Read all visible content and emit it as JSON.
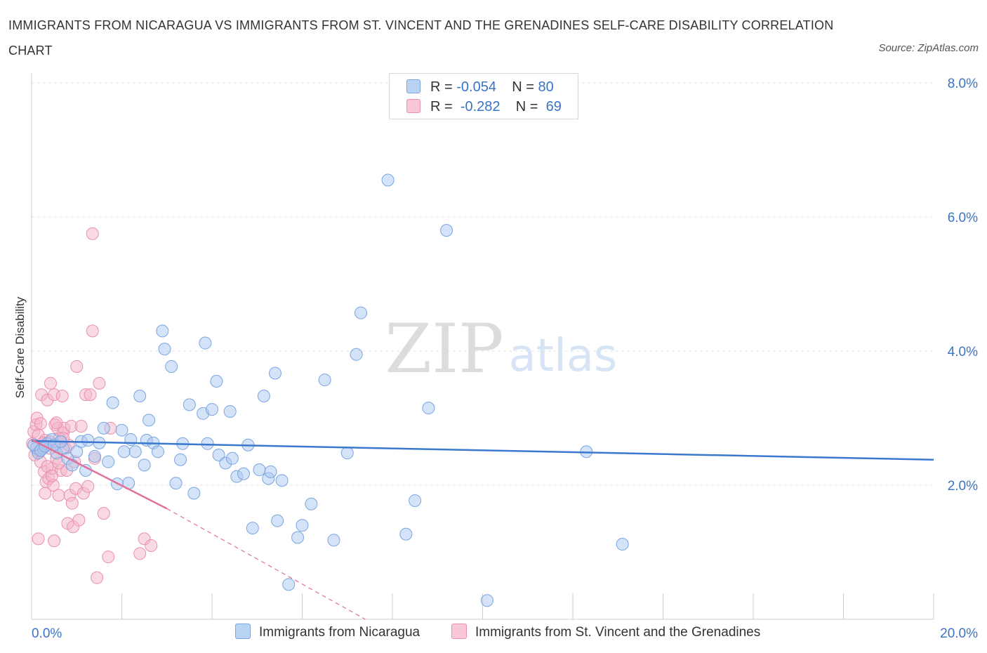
{
  "header": {
    "title": "IMMIGRANTS FROM NICARAGUA VS IMMIGRANTS FROM ST. VINCENT AND THE GRENADINES SELF-CARE DISABILITY CORRELATION CHART",
    "source": "Source: ZipAtlas.com"
  },
  "watermark": {
    "zip": "ZIP",
    "atlas": "atlas"
  },
  "legend": {
    "rows": [
      {
        "r_label": "R =",
        "r_value": "-0.054",
        "n_label": "N =",
        "n_value": "80"
      },
      {
        "r_label": "R =",
        "r_value": "-0.282",
        "n_label": "N =",
        "n_value": "69"
      }
    ]
  },
  "colors": {
    "blue_fill": "#a9c8f0",
    "blue_stroke": "#7aa5e0",
    "blue_line": "#3a78d0",
    "pink_fill": "#f4b6c9",
    "pink_stroke": "#eb8fae",
    "pink_line": "#e56f99",
    "axis_text": "#3a73c6",
    "grid": "#e3e3e3"
  },
  "chart_data": {
    "type": "scatter",
    "title": "IMMIGRANTS FROM NICARAGUA VS IMMIGRANTS FROM ST. VINCENT AND THE GRENADINES SELF-CARE DISABILITY CORRELATION CHART",
    "ylabel": "Self-Care Disability",
    "xlabel": "",
    "xlim": [
      0,
      20
    ],
    "ylim": [
      0,
      8
    ],
    "x_tick_labels": [
      "0.0%",
      "20.0%"
    ],
    "y_ticks": [
      {
        "value": 2,
        "label": "2.0%"
      },
      {
        "value": 4,
        "label": "4.0%"
      },
      {
        "value": 6,
        "label": "6.0%"
      },
      {
        "value": 8,
        "label": "8.0%"
      }
    ],
    "grid": true,
    "legend_position": "top-center",
    "series": [
      {
        "name": "Immigrants from Nicaragua",
        "color": "#a9c8f0",
        "trend": {
          "x": [
            0,
            20
          ],
          "y": [
            2.66,
            2.38
          ]
        },
        "points": [
          [
            0.1,
            2.55
          ],
          [
            0.15,
            2.48
          ],
          [
            0.25,
            2.55
          ],
          [
            0.35,
            2.62
          ],
          [
            0.45,
            2.68
          ],
          [
            0.55,
            2.48
          ],
          [
            0.7,
            2.55
          ],
          [
            0.8,
            2.4
          ],
          [
            0.9,
            2.3
          ],
          [
            1.0,
            2.5
          ],
          [
            1.1,
            2.65
          ],
          [
            1.2,
            2.22
          ],
          [
            1.25,
            2.67
          ],
          [
            1.4,
            2.43
          ],
          [
            1.5,
            2.63
          ],
          [
            1.6,
            2.85
          ],
          [
            1.7,
            2.35
          ],
          [
            1.8,
            3.23
          ],
          [
            1.9,
            2.02
          ],
          [
            2.0,
            2.82
          ],
          [
            2.05,
            2.5
          ],
          [
            2.15,
            2.03
          ],
          [
            2.2,
            2.68
          ],
          [
            2.3,
            2.5
          ],
          [
            2.4,
            3.33
          ],
          [
            2.5,
            2.3
          ],
          [
            2.55,
            2.67
          ],
          [
            2.6,
            2.97
          ],
          [
            2.7,
            2.63
          ],
          [
            2.8,
            2.5
          ],
          [
            2.9,
            4.3
          ],
          [
            2.95,
            4.03
          ],
          [
            3.1,
            3.77
          ],
          [
            3.2,
            2.03
          ],
          [
            3.3,
            2.38
          ],
          [
            3.35,
            2.62
          ],
          [
            3.5,
            3.2
          ],
          [
            3.6,
            1.88
          ],
          [
            3.8,
            3.07
          ],
          [
            3.85,
            4.12
          ],
          [
            3.9,
            2.62
          ],
          [
            4.0,
            3.13
          ],
          [
            4.1,
            3.55
          ],
          [
            4.15,
            2.45
          ],
          [
            4.3,
            2.33
          ],
          [
            4.4,
            3.1
          ],
          [
            4.45,
            2.4
          ],
          [
            4.55,
            2.13
          ],
          [
            4.7,
            2.17
          ],
          [
            4.8,
            2.6
          ],
          [
            4.9,
            1.36
          ],
          [
            5.05,
            2.23
          ],
          [
            5.15,
            3.33
          ],
          [
            5.25,
            2.1
          ],
          [
            5.3,
            2.2
          ],
          [
            5.4,
            3.67
          ],
          [
            5.45,
            1.47
          ],
          [
            5.55,
            2.07
          ],
          [
            5.7,
            0.52
          ],
          [
            5.9,
            1.22
          ],
          [
            6.0,
            1.4
          ],
          [
            6.2,
            1.72
          ],
          [
            6.5,
            3.57
          ],
          [
            6.7,
            1.18
          ],
          [
            7.0,
            2.48
          ],
          [
            7.2,
            3.95
          ],
          [
            7.3,
            4.57
          ],
          [
            7.9,
            6.55
          ],
          [
            8.3,
            1.27
          ],
          [
            8.5,
            1.77
          ],
          [
            8.8,
            3.15
          ],
          [
            9.2,
            5.8
          ],
          [
            10.1,
            0.28
          ],
          [
            12.3,
            2.5
          ],
          [
            13.1,
            1.12
          ],
          [
            0.05,
            2.6
          ],
          [
            0.2,
            2.52
          ],
          [
            0.3,
            2.58
          ],
          [
            0.5,
            2.6
          ],
          [
            0.65,
            2.65
          ]
        ]
      },
      {
        "name": "Immigrants from St. Vincent and the Grenadines",
        "color": "#f4b6c9",
        "trend": {
          "x": [
            0,
            3.0
          ],
          "y": [
            2.68,
            1.65
          ],
          "dashed_to": {
            "x": 7.4,
            "y": 0.0
          }
        },
        "points": [
          [
            0.02,
            2.62
          ],
          [
            0.05,
            2.8
          ],
          [
            0.07,
            2.45
          ],
          [
            0.1,
            2.9
          ],
          [
            0.12,
            3.0
          ],
          [
            0.15,
            2.75
          ],
          [
            0.18,
            2.5
          ],
          [
            0.2,
            2.35
          ],
          [
            0.22,
            3.35
          ],
          [
            0.25,
            2.57
          ],
          [
            0.28,
            2.2
          ],
          [
            0.3,
            2.67
          ],
          [
            0.32,
            2.05
          ],
          [
            0.35,
            3.27
          ],
          [
            0.38,
            2.1
          ],
          [
            0.4,
            2.55
          ],
          [
            0.42,
            3.52
          ],
          [
            0.45,
            2.25
          ],
          [
            0.48,
            2.0
          ],
          [
            0.5,
            3.35
          ],
          [
            0.52,
            2.9
          ],
          [
            0.55,
            2.4
          ],
          [
            0.58,
            2.85
          ],
          [
            0.6,
            1.85
          ],
          [
            0.62,
            2.7
          ],
          [
            0.65,
            2.22
          ],
          [
            0.68,
            3.33
          ],
          [
            0.7,
            2.78
          ],
          [
            0.72,
            2.85
          ],
          [
            0.75,
            2.55
          ],
          [
            0.78,
            2.22
          ],
          [
            0.8,
            1.43
          ],
          [
            0.82,
            2.6
          ],
          [
            0.85,
            1.85
          ],
          [
            0.88,
            2.88
          ],
          [
            0.9,
            1.73
          ],
          [
            0.92,
            1.38
          ],
          [
            0.95,
            2.35
          ],
          [
            0.98,
            1.95
          ],
          [
            1.0,
            3.77
          ],
          [
            1.05,
            1.48
          ],
          [
            1.1,
            2.88
          ],
          [
            1.15,
            1.88
          ],
          [
            1.2,
            3.35
          ],
          [
            1.25,
            1.98
          ],
          [
            1.3,
            3.35
          ],
          [
            1.35,
            4.3
          ],
          [
            1.4,
            2.4
          ],
          [
            1.45,
            0.62
          ],
          [
            1.5,
            3.52
          ],
          [
            1.6,
            1.58
          ],
          [
            1.7,
            0.93
          ],
          [
            1.75,
            2.85
          ],
          [
            1.35,
            5.75
          ],
          [
            2.4,
            0.98
          ],
          [
            2.5,
            1.2
          ],
          [
            2.65,
            1.1
          ],
          [
            0.15,
            1.2
          ],
          [
            0.2,
            2.92
          ],
          [
            0.25,
            2.63
          ],
          [
            0.3,
            1.88
          ],
          [
            0.35,
            2.28
          ],
          [
            0.4,
            2.65
          ],
          [
            0.45,
            2.14
          ],
          [
            0.5,
            1.17
          ],
          [
            0.55,
            2.93
          ],
          [
            0.6,
            2.33
          ],
          [
            0.65,
            2.65
          ],
          [
            0.7,
            2.7
          ]
        ]
      }
    ]
  }
}
